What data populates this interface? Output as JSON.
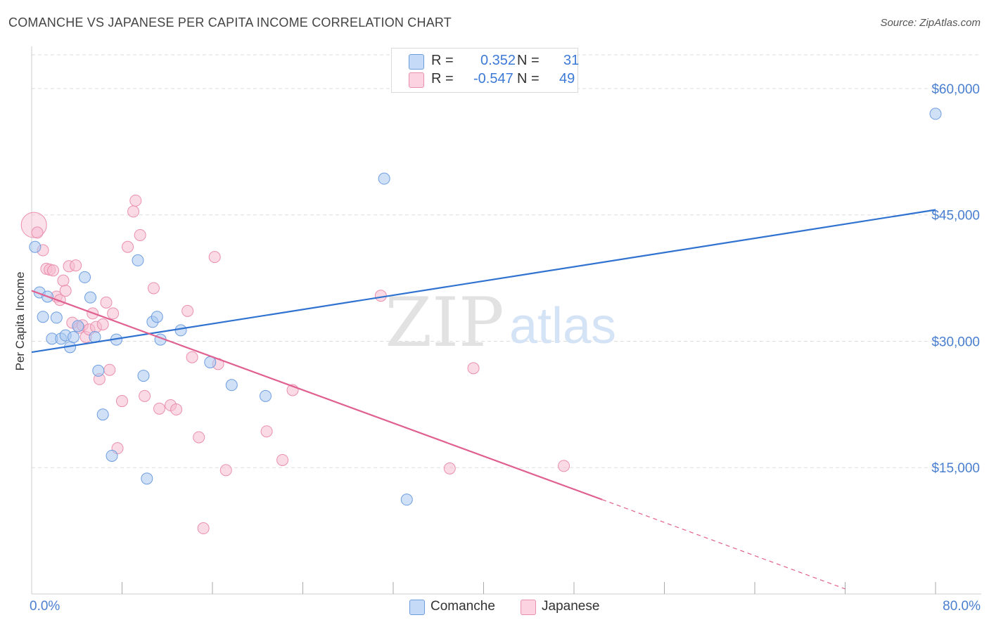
{
  "header": {
    "title": "COMANCHE VS JAPANESE PER CAPITA INCOME CORRELATION CHART",
    "source": "Source: ZipAtlas.com"
  },
  "watermark": {
    "zip": "ZIP",
    "atlas": "atlas"
  },
  "legend": {
    "r_label": "R =",
    "n_label": "N =",
    "comanche": {
      "r": "0.352",
      "n": "31"
    },
    "japanese": {
      "r": "-0.547",
      "n": "49"
    }
  },
  "colors": {
    "comanche_fill": "#a9c9f0",
    "comanche_stroke": "#6d9de0",
    "comanche_line": "#2f72d0",
    "japanese_fill": "#f6bcd0",
    "japanese_stroke": "#ea8fae",
    "japanese_line": "#e06090",
    "axis_text": "#4a7fd0",
    "grid": "#dddddd"
  },
  "chart_data": {
    "type": "scatter",
    "title": "COMANCHE VS JAPANESE PER CAPITA INCOME CORRELATION CHART",
    "xlabel": "",
    "ylabel": "Per Capita Income",
    "xlim": [
      0,
      80
    ],
    "ylim": [
      0,
      64000
    ],
    "x_tick_labels": {
      "min": "0.0%",
      "max": "80.0%"
    },
    "y_ticks": [
      15000,
      30000,
      45000,
      60000
    ],
    "y_tick_labels": [
      "$15,000",
      "$30,000",
      "$45,000",
      "$60,000"
    ],
    "grid": true,
    "legend_position": "bottom-center",
    "series": [
      {
        "name": "Comanche",
        "r": 0.352,
        "n": 31,
        "trend": {
          "x0": 0,
          "y0": 28700,
          "x1": 80,
          "y1": 45600
        },
        "points": [
          [
            0.3,
            41200
          ],
          [
            0.7,
            35800
          ],
          [
            1.0,
            32900
          ],
          [
            1.4,
            35300
          ],
          [
            1.8,
            30300
          ],
          [
            2.2,
            32800
          ],
          [
            2.6,
            30300
          ],
          [
            3.0,
            30700
          ],
          [
            3.4,
            29300
          ],
          [
            3.7,
            30500
          ],
          [
            4.1,
            31800
          ],
          [
            4.7,
            37600
          ],
          [
            5.2,
            35200
          ],
          [
            5.6,
            30500
          ],
          [
            5.9,
            26500
          ],
          [
            6.3,
            21300
          ],
          [
            7.1,
            16400
          ],
          [
            7.5,
            30200
          ],
          [
            9.4,
            39600
          ],
          [
            9.9,
            25900
          ],
          [
            10.2,
            13700
          ],
          [
            10.7,
            32300
          ],
          [
            11.1,
            32900
          ],
          [
            11.4,
            30200
          ],
          [
            13.2,
            31300
          ],
          [
            15.8,
            27500
          ],
          [
            17.7,
            24800
          ],
          [
            20.7,
            23500
          ],
          [
            31.2,
            49300
          ],
          [
            33.2,
            11200
          ],
          [
            80.0,
            57000
          ]
        ]
      },
      {
        "name": "Japanese",
        "r": -0.547,
        "n": 49,
        "trend": {
          "x0": 0,
          "y0": 36000,
          "x1": 50.5,
          "y1": 11200,
          "dashed_to_x": 72,
          "dashed_to_y": 600
        },
        "points": [
          [
            0.2,
            43800
          ],
          [
            0.5,
            42900
          ],
          [
            1.0,
            40800
          ],
          [
            1.3,
            38600
          ],
          [
            1.6,
            38500
          ],
          [
            1.9,
            38400
          ],
          [
            2.2,
            35300
          ],
          [
            2.5,
            34900
          ],
          [
            2.8,
            37200
          ],
          [
            3.0,
            36000
          ],
          [
            3.3,
            38900
          ],
          [
            3.6,
            32200
          ],
          [
            3.9,
            39000
          ],
          [
            4.2,
            31600
          ],
          [
            4.5,
            31900
          ],
          [
            4.8,
            30500
          ],
          [
            5.1,
            31400
          ],
          [
            5.4,
            33300
          ],
          [
            5.7,
            31700
          ],
          [
            6.0,
            25500
          ],
          [
            6.3,
            32000
          ],
          [
            6.6,
            34600
          ],
          [
            6.9,
            26600
          ],
          [
            7.2,
            33300
          ],
          [
            7.6,
            17300
          ],
          [
            8.0,
            22900
          ],
          [
            8.5,
            41200
          ],
          [
            9.0,
            45400
          ],
          [
            9.2,
            46700
          ],
          [
            9.6,
            42600
          ],
          [
            10.0,
            23500
          ],
          [
            10.8,
            36300
          ],
          [
            11.3,
            22000
          ],
          [
            12.3,
            22400
          ],
          [
            12.8,
            21900
          ],
          [
            13.8,
            33600
          ],
          [
            14.2,
            28100
          ],
          [
            14.8,
            18600
          ],
          [
            15.2,
            7800
          ],
          [
            16.2,
            40000
          ],
          [
            16.5,
            27300
          ],
          [
            17.2,
            14700
          ],
          [
            20.8,
            19300
          ],
          [
            22.2,
            15900
          ],
          [
            23.1,
            24200
          ],
          [
            30.9,
            35400
          ],
          [
            37.0,
            14900
          ],
          [
            39.1,
            26800
          ],
          [
            47.1,
            15200
          ]
        ]
      }
    ]
  }
}
